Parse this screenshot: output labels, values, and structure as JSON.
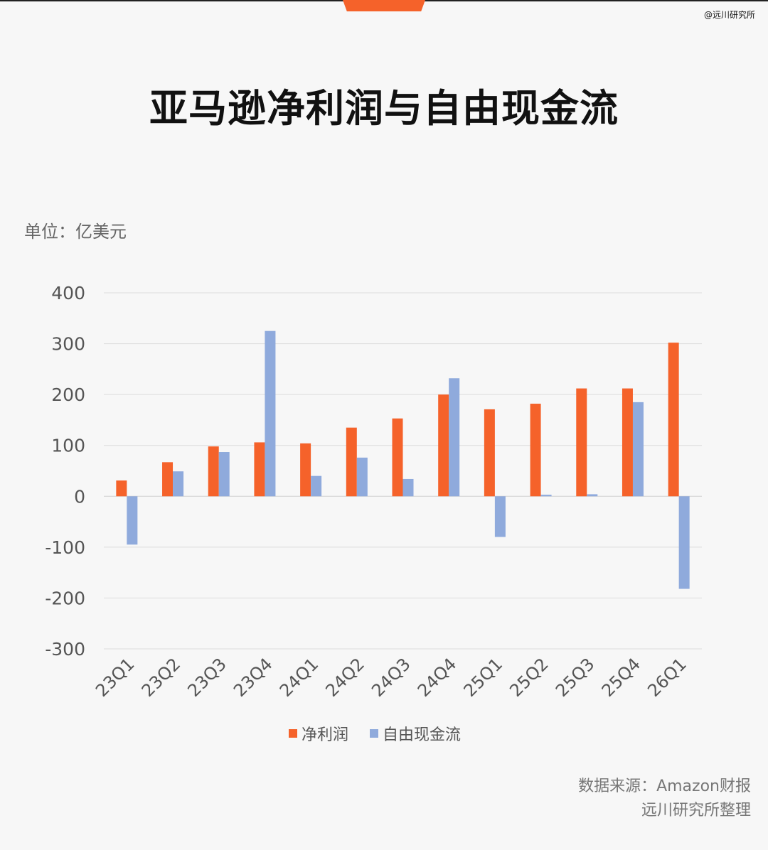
{
  "watermark": "@远川研究所",
  "title": "亚马逊净利润与自由现金流",
  "unit": "单位：亿美元",
  "colors": {
    "accent": "#f5622a",
    "net_profit": "#f5622a",
    "fcf": "#8faadc"
  },
  "chart_data": {
    "type": "bar",
    "categories": [
      "23Q1",
      "23Q2",
      "23Q3",
      "23Q4",
      "24Q1",
      "24Q2",
      "24Q3",
      "24Q4",
      "25Q1",
      "25Q2",
      "25Q3",
      "25Q4",
      "26Q1"
    ],
    "series": [
      {
        "name": "净利润",
        "values": [
          31,
          67,
          98,
          106,
          104,
          135,
          153,
          200,
          171,
          182,
          212,
          212,
          302
        ]
      },
      {
        "name": "自由现金流",
        "values": [
          -95,
          49,
          87,
          325,
          40,
          76,
          34,
          232,
          -80,
          3,
          4,
          185,
          -182
        ]
      }
    ],
    "ylim": [
      -300,
      400
    ],
    "yticks": [
      400,
      300,
      200,
      100,
      0,
      -100,
      -200,
      -300
    ],
    "grid": true,
    "legend_position": "bottom"
  },
  "source": {
    "line1": "数据来源：Amazon财报",
    "line2": "远川研究所整理"
  }
}
